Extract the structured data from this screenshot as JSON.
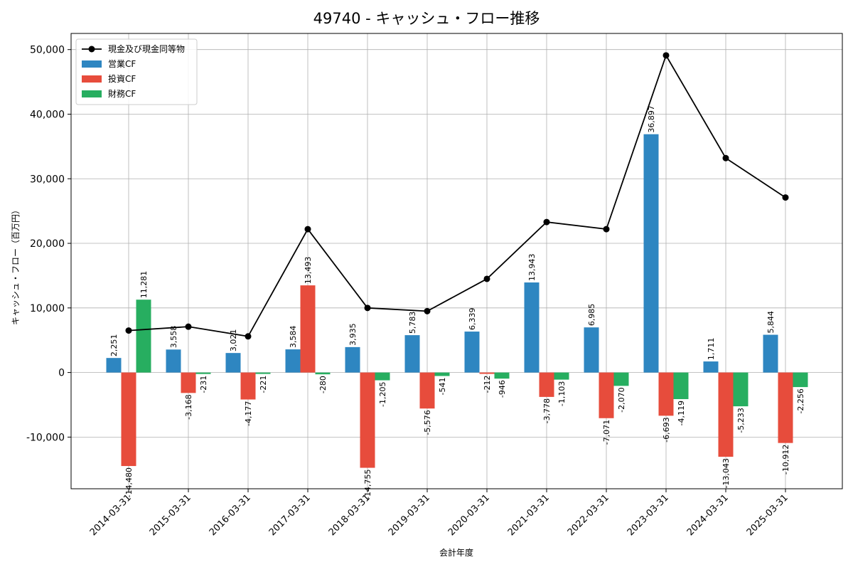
{
  "chart_data": {
    "type": "bar",
    "title": "49740 - キャッシュ・フロー推移",
    "xlabel": "会計年度",
    "ylabel": "キャッシュ・フロー（百万円）",
    "ylim": [
      -18000,
      52500
    ],
    "yticks": [
      -10000,
      0,
      10000,
      20000,
      30000,
      40000,
      50000
    ],
    "ytick_labels": [
      "-10,000",
      "0",
      "10,000",
      "20,000",
      "30,000",
      "40,000",
      "50,000"
    ],
    "grid": true,
    "legend_position": "top-left",
    "categories": [
      "2014-03-31",
      "2015-03-31",
      "2016-03-31",
      "2017-03-31",
      "2018-03-31",
      "2019-03-31",
      "2020-03-31",
      "2021-03-31",
      "2022-03-31",
      "2023-03-31",
      "2024-03-31",
      "2025-03-31"
    ],
    "series": [
      {
        "name": "営業CF",
        "kind": "bar",
        "color": "#2e86c1",
        "values": [
          2251,
          3558,
          3021,
          3584,
          3935,
          5783,
          6339,
          13943,
          6985,
          36897,
          1711,
          5844
        ],
        "labels": [
          "2,251",
          "3,558",
          "3,021",
          "3,584",
          "3,935",
          "5,783",
          "6,339",
          "13,943",
          "6,985",
          "36,897",
          "1,711",
          "5,844"
        ]
      },
      {
        "name": "投資CF",
        "kind": "bar",
        "color": "#e74c3c",
        "values": [
          -14480,
          -3168,
          -4177,
          13493,
          -14755,
          -5576,
          -212,
          -3778,
          -7071,
          -6693,
          -13043,
          -10912
        ],
        "labels": [
          "-14,480",
          "-3,168",
          "-4,177",
          "13,493",
          "-14,755",
          "-5,576",
          "-212",
          "-3,778",
          "-7,071",
          "-6,693",
          "-13,043",
          "-10,912"
        ]
      },
      {
        "name": "財務CF",
        "kind": "bar",
        "color": "#27ae60",
        "values": [
          11281,
          -231,
          -221,
          -280,
          -1205,
          -541,
          -946,
          -1103,
          -2070,
          -4119,
          -5233,
          -2256
        ],
        "labels": [
          "11,281",
          "-231",
          "-221",
          "-280",
          "-1,205",
          "-541",
          "-946",
          "-1,103",
          "-2,070",
          "-4,119",
          "-5,233",
          "-2,256"
        ]
      },
      {
        "name": "現金及び現金同等物",
        "kind": "line",
        "color": "#000000",
        "values": [
          6500,
          7100,
          5600,
          22200,
          10000,
          9500,
          14500,
          23300,
          22200,
          49100,
          33200,
          27100
        ]
      }
    ]
  }
}
